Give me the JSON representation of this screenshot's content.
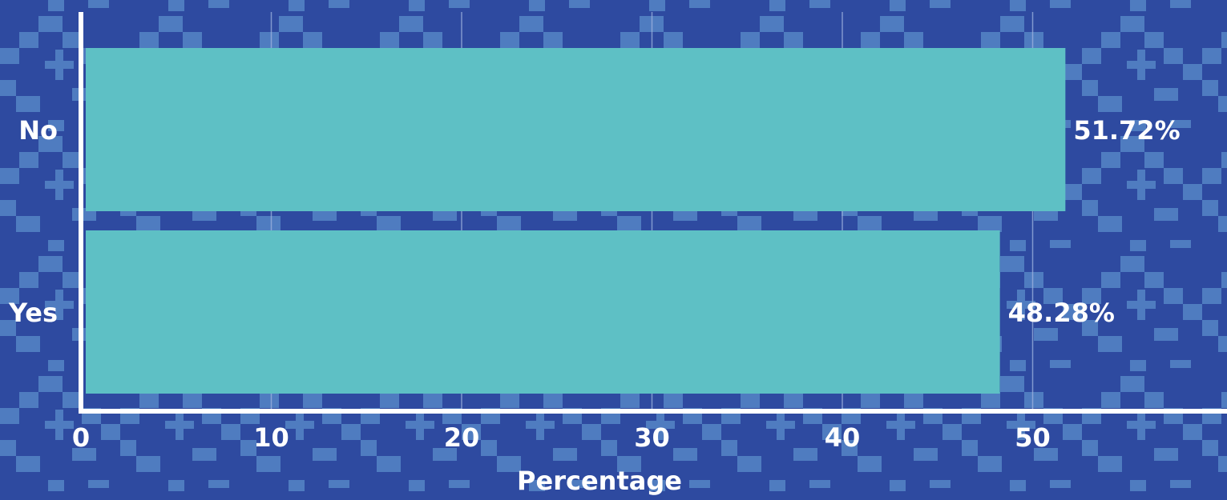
{
  "background_colors": {
    "base": "#2e4aa0",
    "pattern": "#4f7cc0"
  },
  "bar_color": "#5ec0c5",
  "axis_color": "#ffffff",
  "grid_color": "#9db3de",
  "chart_data": {
    "type": "bar",
    "orientation": "horizontal",
    "categories": [
      "No",
      "Yes"
    ],
    "values": [
      51.72,
      48.28
    ],
    "data_labels": [
      "51.72%",
      "48.28%"
    ],
    "xlabel": "Percentage",
    "ylabel": "",
    "xlim": [
      0,
      60
    ],
    "xticks": [
      0,
      10,
      20,
      30,
      40,
      50
    ],
    "xtick_labels": [
      "0",
      "10",
      "20",
      "30",
      "40",
      "50"
    ],
    "grid": true
  }
}
